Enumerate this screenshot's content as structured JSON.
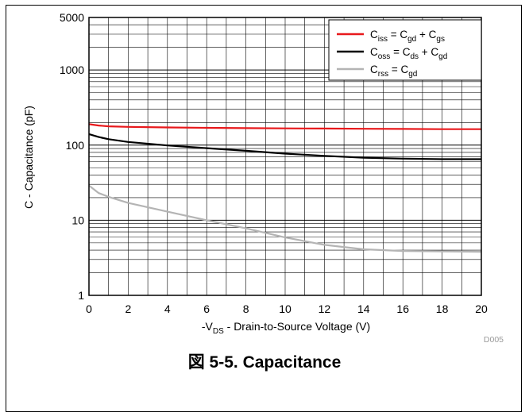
{
  "figure": {
    "caption_prefix": "図",
    "caption_text": "5-5. Capacitance",
    "code": "D005"
  },
  "chart_data": {
    "type": "line",
    "xlabel": {
      "prefix": "-V",
      "sub": "DS",
      "suffix": " - Drain-to-Source Voltage (V)"
    },
    "ylabel": "C - Capacitance (pF)",
    "xlim": [
      0,
      20
    ],
    "ylim": [
      1,
      5000
    ],
    "yscale": "log",
    "grid": true,
    "legend_position": "top-right",
    "x_ticks": [
      "0",
      "2",
      "4",
      "6",
      "8",
      "10",
      "12",
      "14",
      "16",
      "18",
      "20"
    ],
    "y_ticks": [
      "1",
      "10",
      "100",
      "1000",
      "5000"
    ],
    "series": [
      {
        "color": "#e8191c",
        "legend": [
          "C",
          "iss",
          " = C",
          "gd",
          " + C",
          "gs"
        ],
        "x": [
          0,
          0.5,
          1,
          2,
          4,
          6,
          8,
          10,
          12,
          14,
          16,
          18,
          20
        ],
        "y": [
          190,
          182,
          178,
          175,
          172,
          170,
          168,
          167,
          166,
          165,
          164,
          163,
          163
        ]
      },
      {
        "color": "#000000",
        "legend": [
          "C",
          "oss",
          " = C",
          "ds",
          " + C",
          "gd"
        ],
        "x": [
          0,
          0.5,
          1,
          2,
          4,
          6,
          8,
          10,
          12,
          14,
          16,
          18,
          20
        ],
        "y": [
          140,
          128,
          120,
          110,
          99,
          91,
          84,
          77,
          72,
          68,
          66,
          65,
          65
        ]
      },
      {
        "color": "#b4b4b4",
        "legend": [
          "C",
          "rss",
          " = C",
          "gd"
        ],
        "x": [
          0,
          0.5,
          1,
          2,
          4,
          6,
          8,
          10,
          12,
          14,
          16,
          18,
          20
        ],
        "y": [
          29,
          23,
          20.5,
          17,
          13,
          10,
          7.8,
          5.9,
          4.7,
          4.1,
          3.9,
          3.85,
          3.8
        ]
      }
    ]
  }
}
